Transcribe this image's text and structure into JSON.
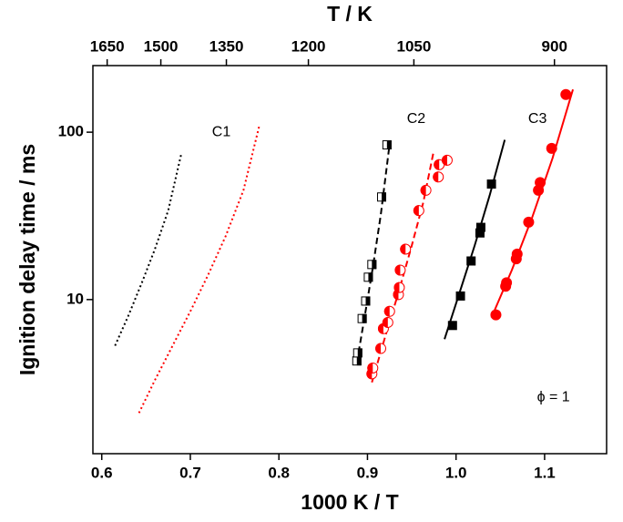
{
  "chart_data": {
    "type": "scatter",
    "xlabel": "1000 K / T",
    "ylabel": "Ignition delay time / ms",
    "x2label": "T / K",
    "xlim": [
      0.59,
      1.17
    ],
    "ylim": [
      1.2,
      250
    ],
    "yscale": "log",
    "xticks": [
      0.6,
      0.7,
      0.8,
      0.9,
      {
        "value": 1,
        "label": "1.0"
      },
      1.1
    ],
    "yticks": [
      10,
      100
    ],
    "x2ticks": [
      {
        "value": 0.6061,
        "label": "1650"
      },
      {
        "value": 0.6667,
        "label": "1500"
      },
      {
        "value": 0.7407,
        "label": "1350"
      },
      {
        "value": 0.8333,
        "label": "1200"
      },
      {
        "value": 0.9524,
        "label": "1050"
      },
      {
        "value": 1.1111,
        "label": "900"
      }
    ],
    "annotations": [
      {
        "text": "C1",
        "x": 0.735,
        "y": 100
      },
      {
        "text": "C2",
        "x": 0.955,
        "y": 120
      },
      {
        "text": "C3",
        "x": 1.092,
        "y": 120
      },
      {
        "text": "ϕ = 1",
        "x": 1.11,
        "y": 2.6
      }
    ],
    "series": [
      {
        "kind": "line",
        "style": "dotted",
        "color": "#000000",
        "x": [
          0.615,
          0.63,
          0.645,
          0.66,
          0.675,
          0.69
        ],
        "values": [
          5.3,
          8,
          12.5,
          20,
          34,
          75
        ]
      },
      {
        "kind": "line",
        "style": "dotted",
        "color": "#ff0000",
        "x": [
          0.642,
          0.66,
          0.68,
          0.7,
          0.72,
          0.74,
          0.76,
          0.778
        ],
        "values": [
          2.1,
          3.3,
          5.3,
          8.5,
          14,
          24,
          45,
          110
        ]
      },
      {
        "kind": "line",
        "style": "dashed",
        "color": "#000000",
        "x": [
          0.888,
          0.897,
          0.906,
          0.915,
          0.925
        ],
        "values": [
          4.2,
          8,
          15.5,
          32,
          85
        ]
      },
      {
        "kind": "line",
        "style": "dashed",
        "color": "#ff0000",
        "x": [
          0.905,
          0.92,
          0.935,
          0.95,
          0.963,
          0.975
        ],
        "values": [
          3.2,
          6,
          11,
          21,
          38,
          78
        ]
      },
      {
        "kind": "line",
        "style": "solid",
        "color": "#000000",
        "x": [
          0.987,
          1.004,
          1.021,
          1.038,
          1.055
        ],
        "values": [
          5.8,
          11,
          21,
          42,
          90
        ]
      },
      {
        "kind": "line",
        "style": "solid",
        "color": "#ff0000",
        "x": [
          1.04,
          1.063,
          1.086,
          1.109,
          1.132
        ],
        "values": [
          7.8,
          15,
          31,
          70,
          180
        ]
      },
      {
        "kind": "points",
        "marker": "half-square",
        "color": "#000000",
        "x": [
          0.888,
          0.889,
          0.894,
          0.898,
          0.901,
          0.905,
          0.916,
          0.922
        ],
        "values": [
          4.3,
          4.8,
          7.7,
          9.8,
          13.6,
          16.2,
          41,
          84
        ]
      },
      {
        "kind": "points",
        "marker": "half-circle",
        "color": "#ff0000",
        "x": [
          0.905,
          0.906,
          0.915,
          0.918,
          0.923,
          0.925,
          0.935,
          0.936,
          0.937,
          0.943,
          0.958,
          0.966,
          0.98,
          0.981,
          0.99
        ],
        "values": [
          3.6,
          3.9,
          5.1,
          6.7,
          7.3,
          8.5,
          10.7,
          11.8,
          15,
          20,
          34,
          45,
          54,
          64,
          68
        ]
      },
      {
        "kind": "points",
        "marker": "square",
        "color": "#000000",
        "x": [
          0.996,
          1.005,
          1.017,
          1.027,
          1.028,
          1.04
        ],
        "values": [
          7,
          10.5,
          17,
          25,
          27,
          49
        ]
      },
      {
        "kind": "points",
        "marker": "circle",
        "color": "#ff0000",
        "x": [
          1.045,
          1.056,
          1.057,
          1.068,
          1.069,
          1.082,
          1.093,
          1.095,
          1.108,
          1.124
        ],
        "values": [
          8.1,
          12,
          12.6,
          17.5,
          18.7,
          29,
          45,
          50,
          80,
          168
        ]
      }
    ]
  }
}
